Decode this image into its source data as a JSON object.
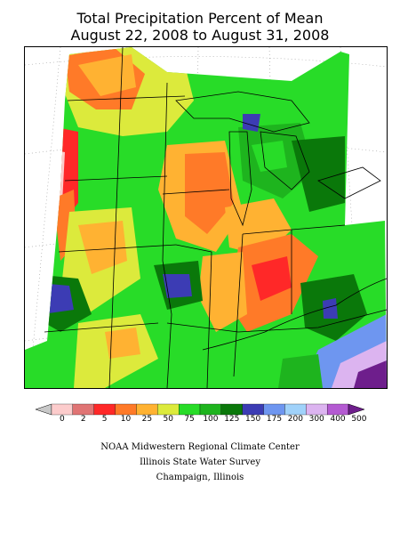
{
  "title": {
    "line1": "Total Precipitation Percent of Mean",
    "line2": "August 22, 2008 to August 31, 2008"
  },
  "legend": {
    "labels": [
      "0",
      "2",
      "5",
      "10",
      "25",
      "50",
      "75",
      "100",
      "125",
      "150",
      "175",
      "200",
      "300",
      "400",
      "500"
    ],
    "colors": [
      "#c8c8c8",
      "#fccccc",
      "#e07474",
      "#ff2828",
      "#ff7a28",
      "#ffb232",
      "#dcea3c",
      "#28dc28",
      "#1eb41e",
      "#0a780a",
      "#3c3cb4",
      "#6e96f0",
      "#a0d2fa",
      "#dcb4f0",
      "#b45ad2",
      "#6e1e8c"
    ]
  },
  "credits": {
    "line1": "NOAA Midwestern Regional Climate Center",
    "line2": "Illinois State Water Survey",
    "line3": "Champaign, Illinois"
  },
  "map_colors": {
    "background": "#ffffff",
    "border": "#000000",
    "state_line": "#000000",
    "grid": "#9a9a9a"
  }
}
